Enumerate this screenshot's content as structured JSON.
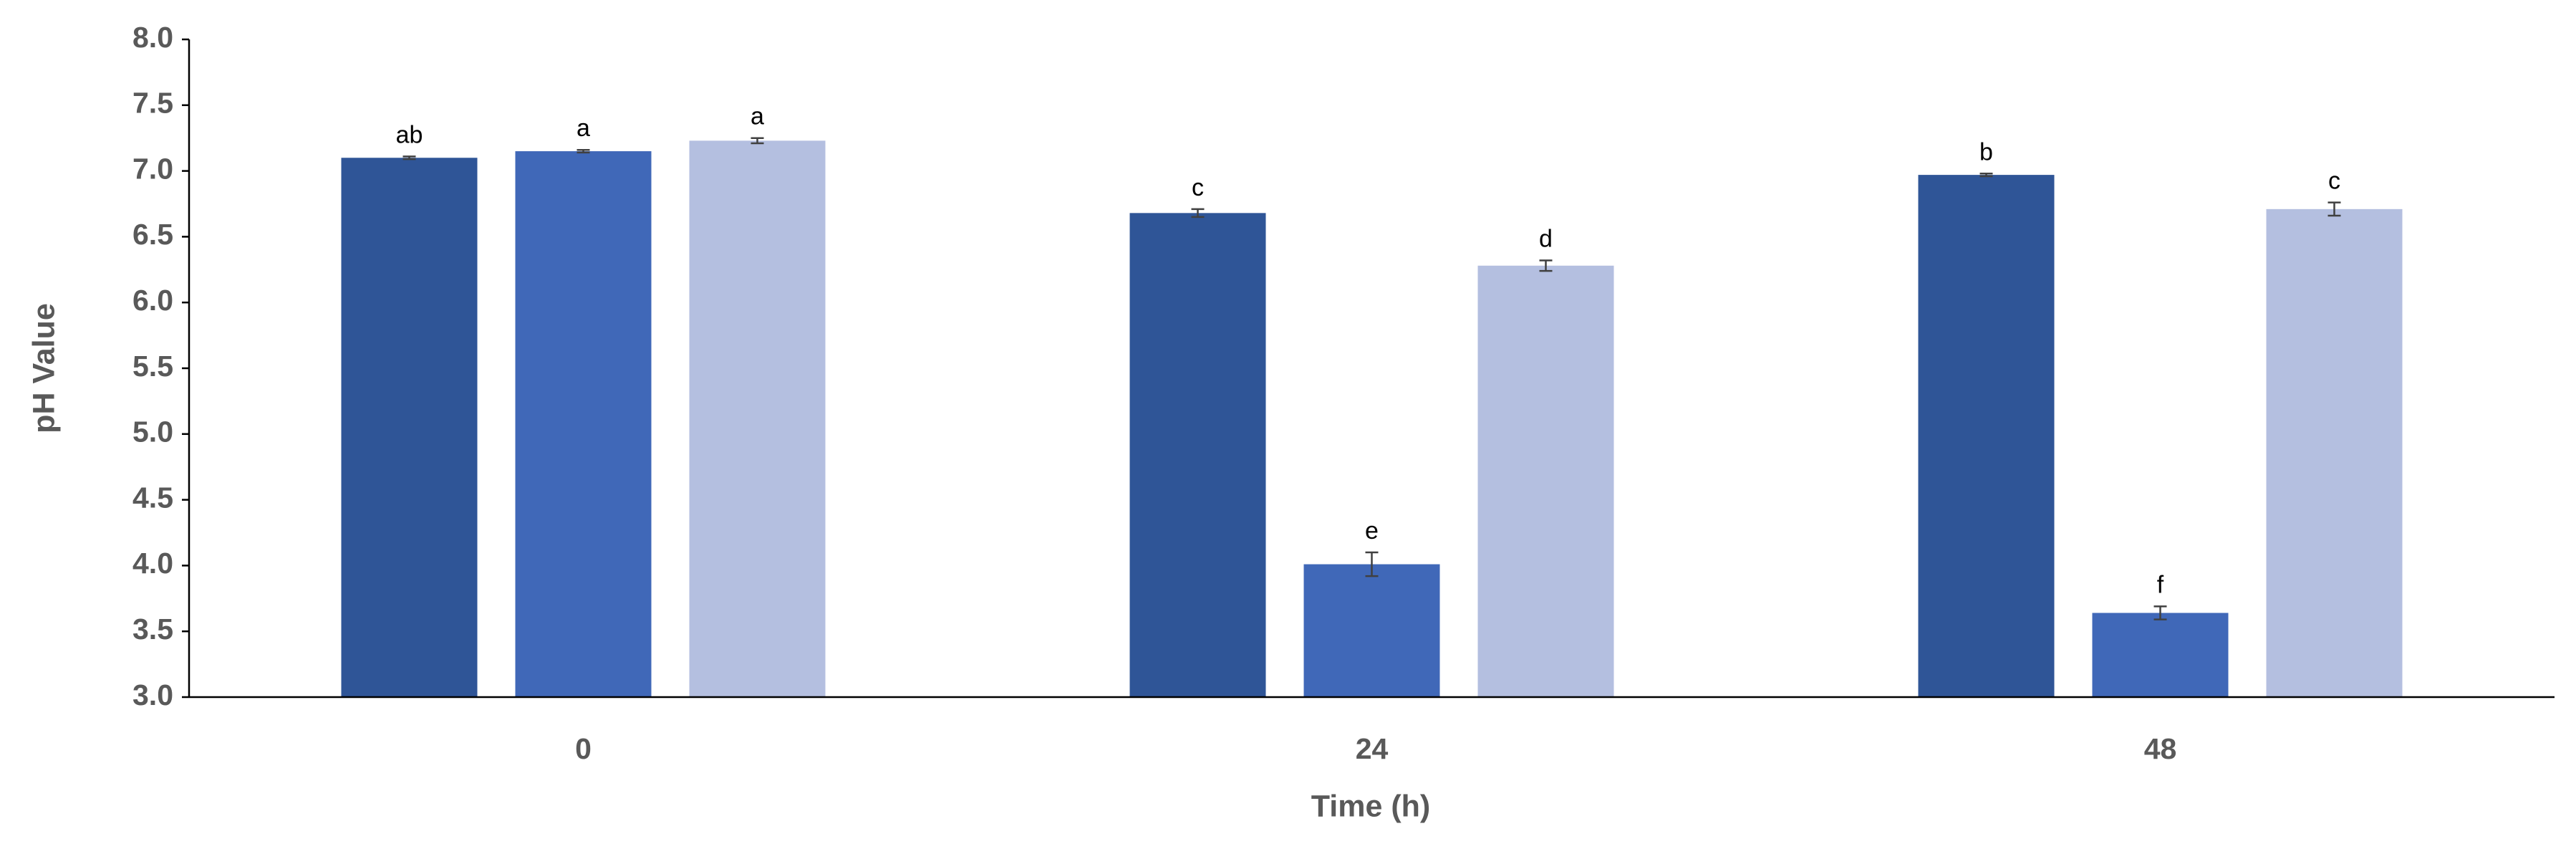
{
  "chart_data": {
    "type": "bar",
    "x_label": "Time (h)",
    "y_label": "pH Value",
    "categories": [
      "0",
      "24",
      "48"
    ],
    "series": [
      {
        "color": "#2f5597",
        "values": [
          7.1,
          6.68,
          6.97
        ],
        "errors": [
          0.01,
          0.03,
          0.01
        ],
        "labels": [
          "ab",
          "c",
          "b"
        ]
      },
      {
        "color": "#4068b8",
        "values": [
          7.15,
          4.01,
          3.64
        ],
        "errors": [
          0.01,
          0.09,
          0.05
        ],
        "labels": [
          "a",
          "e",
          "f"
        ]
      },
      {
        "color": "#b4bfe0",
        "values": [
          7.23,
          6.28,
          6.71
        ],
        "errors": [
          0.02,
          0.04,
          0.05
        ],
        "labels": [
          "a",
          "d",
          "c"
        ]
      }
    ],
    "ylim": [
      3,
      8
    ],
    "yticks": [
      {
        "value": 3,
        "label": "3.0"
      },
      3.5,
      {
        "value": 4,
        "label": "4.0"
      },
      4.5,
      {
        "value": 5,
        "label": "5.0"
      },
      5.5,
      {
        "value": 6,
        "label": "6.0"
      },
      6.5,
      {
        "value": 7,
        "label": "7.0"
      },
      7.5,
      {
        "value": 8,
        "label": "8.0"
      }
    ],
    "grid": false
  }
}
